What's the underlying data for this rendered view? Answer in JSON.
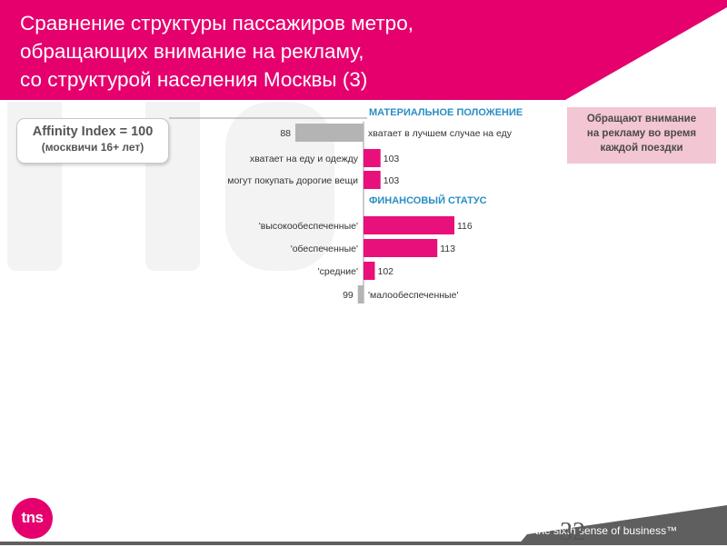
{
  "header": {
    "title_lines": [
      "Сравнение структуры пассажиров метро,",
      "обращающих внимание на рекламу,",
      "со структурой населения Москвы (3)"
    ]
  },
  "affinity": {
    "line1": "Affinity Index = 100",
    "line2": "(москвичи 16+ лет)"
  },
  "note": {
    "lines": [
      "Обращают внимание",
      "на рекламу во время",
      "каждой поездки"
    ]
  },
  "colors": {
    "brand": "#e5006e",
    "bar_above": "#e8107a",
    "bar_below": "#b4b4b4",
    "section_heading": "#2a8ec4",
    "footer": "#5f5f5f"
  },
  "chart_data": {
    "type": "bar",
    "orientation": "horizontal",
    "baseline": 100,
    "groups": [
      {
        "heading": "МАТЕРИАЛЬНОЕ ПОЛОЖЕНИЕ",
        "items": [
          {
            "label": "хватает в лучшем случае на еду",
            "value": 88
          },
          {
            "label": "хватает на еду и одежду",
            "value": 103
          },
          {
            "label": "могут покупать дорогие вещи",
            "value": 103
          }
        ]
      },
      {
        "heading": "ФИНАНСОВЫЙ СТАТУС",
        "items": [
          {
            "label": "'высокообеспеченные'",
            "value": 116
          },
          {
            "label": "'обеспеченные'",
            "value": 113
          },
          {
            "label": "'средние'",
            "value": 102
          },
          {
            "label": "'малообеспеченные'",
            "value": 99
          }
        ]
      }
    ]
  },
  "footer": {
    "logo": "tns",
    "tagline": "the sixth sense of business™",
    "page_number": "32"
  }
}
